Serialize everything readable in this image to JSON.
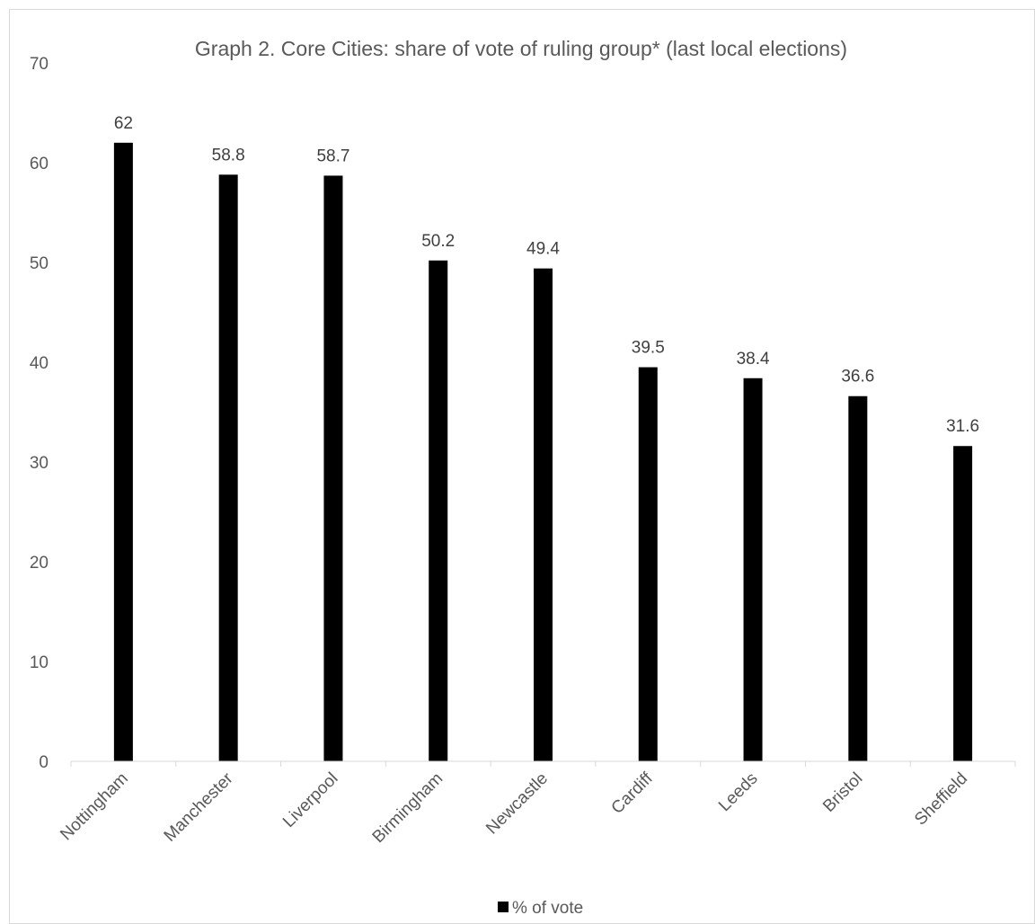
{
  "chart_data": {
    "type": "bar",
    "title": "Graph 2.  Core Cities: share of vote of ruling group* (last local elections)",
    "xlabel": "",
    "ylabel": "",
    "categories": [
      "Nottingham",
      "Manchester",
      "Liverpool",
      "Birmingham",
      "Newcastle",
      "Cardiff",
      "Leeds",
      "Bristol",
      "Sheffield"
    ],
    "series": [
      {
        "name": "% of vote",
        "values": [
          62,
          58.8,
          58.7,
          50.2,
          49.4,
          39.5,
          38.4,
          36.6,
          31.6
        ],
        "color": "#000000"
      }
    ],
    "data_labels": [
      "62",
      "58.8",
      "58.7",
      "50.2",
      "49.4",
      "39.5",
      "38.4",
      "36.6",
      "31.6"
    ],
    "ylim": [
      0,
      70
    ],
    "yticks": [
      "0",
      "10",
      "20",
      "30",
      "40",
      "50",
      "60",
      "70"
    ],
    "grid": false,
    "legend_position": "bottom",
    "colors": {
      "bar": "#000000",
      "axis": "#d9d9d9",
      "text": "#595959"
    }
  }
}
